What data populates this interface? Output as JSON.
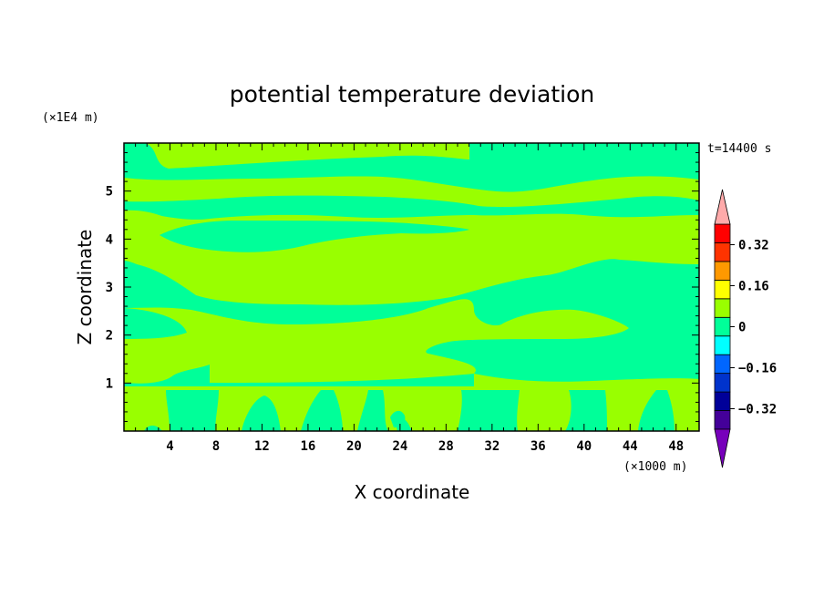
{
  "chart_data": {
    "type": "heatmap",
    "title": "potential temperature deviation",
    "xlabel": "X coordinate",
    "ylabel": "Z coordinate",
    "x_unit": "(×1000 m)",
    "y_unit": "(×1E4 m)",
    "time_label": "t=14400 s",
    "xlim": [
      0,
      50
    ],
    "ylim": [
      0,
      6
    ],
    "x_ticks": [
      "4",
      "8",
      "12",
      "16",
      "20",
      "24",
      "28",
      "32",
      "36",
      "40",
      "44",
      "48"
    ],
    "y_ticks": [
      "1",
      "2",
      "3",
      "4",
      "5"
    ],
    "colorbar": {
      "levels": [
        -0.4,
        -0.32,
        -0.24,
        -0.16,
        -0.08,
        0,
        0.08,
        0.16,
        0.24,
        0.32,
        0.4
      ],
      "colors": [
        "#440099",
        "#000099",
        "#0033cc",
        "#0066ff",
        "#00ffff",
        "#00ff99",
        "#99ff00",
        "#ffff00",
        "#ff9900",
        "#ff3300",
        "#ff0000"
      ],
      "under_color": "#7700bb",
      "over_color": "#ffaaaa",
      "tick_labels": [
        "0.32",
        "0.16",
        "0",
        "−0.16",
        "−0.32"
      ]
    },
    "colors": {
      "negative_band": "#00ff99",
      "positive_band": "#99ff00"
    },
    "bands_description_levels": [
      -0.08,
      0,
      0.08
    ]
  }
}
